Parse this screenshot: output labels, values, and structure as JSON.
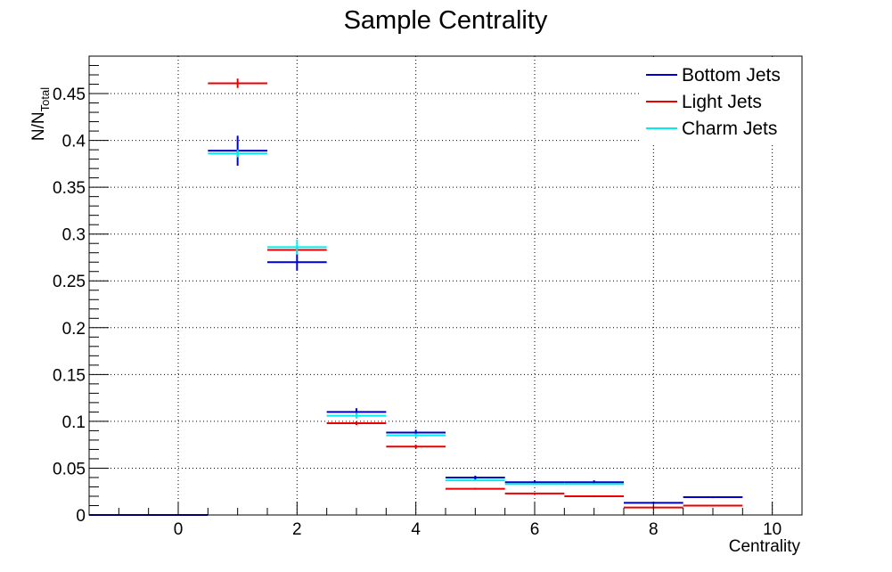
{
  "chart_data": {
    "type": "scatter",
    "title": "Sample Centrality",
    "xlabel": "Centrality",
    "ylabel_main": "N/N",
    "ylabel_sub": "Total",
    "xlim": [
      -1.5,
      10.5
    ],
    "ylim": [
      0,
      0.49
    ],
    "grid": true,
    "legend_position": "top-right",
    "x_ticks": [
      0,
      2,
      4,
      6,
      8,
      10
    ],
    "x_tick_labels": [
      "0",
      "2",
      "4",
      "6",
      "8",
      "10"
    ],
    "y_ticks": [
      0,
      0.05,
      0.1,
      0.15,
      0.2,
      0.25,
      0.3,
      0.35,
      0.4,
      0.45
    ],
    "y_tick_labels": [
      "0",
      "0.05",
      "0.1",
      "0.15",
      "0.2",
      "0.25",
      "0.3",
      "0.35",
      "0.4",
      "0.45"
    ],
    "bin_half_width": 0.5,
    "series": [
      {
        "name": "Bottom Jets",
        "color": "#0000cc",
        "x": [
          -1,
          0,
          1,
          2,
          3,
          4,
          5,
          6,
          7,
          8,
          9
        ],
        "y": [
          0.0,
          0.0,
          0.389,
          0.27,
          0.11,
          0.088,
          0.04,
          0.035,
          0.035,
          0.013,
          0.019
        ],
        "err": [
          0,
          0,
          0.016,
          0.009,
          0.004,
          0.003,
          0.002,
          0.002,
          0.002,
          0.001,
          0.001
        ]
      },
      {
        "name": "Light Jets",
        "color": "#ee0000",
        "x": [
          1,
          2,
          3,
          4,
          5,
          6,
          7,
          8,
          9
        ],
        "y": [
          0.461,
          0.283,
          0.098,
          0.073,
          0.028,
          0.023,
          0.02,
          0.008,
          0.01
        ],
        "err": [
          0.005,
          0.003,
          0.002,
          0.002,
          0.001,
          0.001,
          0.001,
          0.001,
          0.001
        ]
      },
      {
        "name": "Charm Jets",
        "color": "#00eeee",
        "x": [
          1,
          2,
          3,
          4,
          5,
          6,
          7
        ],
        "y": [
          0.386,
          0.286,
          0.106,
          0.085,
          0.037,
          0.033,
          0.033
        ],
        "err": [
          0.004,
          0.008,
          0.003,
          0.002,
          0.001,
          0.001,
          0.001
        ]
      }
    ]
  }
}
